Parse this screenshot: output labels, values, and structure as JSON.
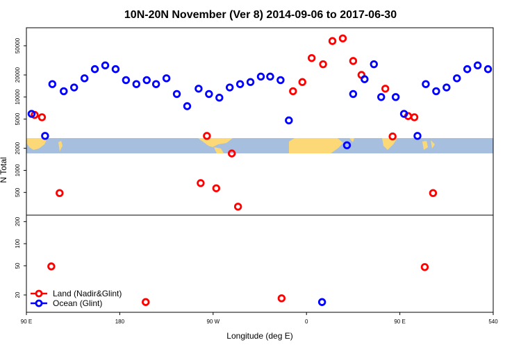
{
  "chart_data": {
    "type": "scatter",
    "title": "10N-20N November (Ver 8)   2014-09-06 to 2017-06-30",
    "x_label": "Longitude (deg E)",
    "y_label": "N Total",
    "log_y": true,
    "legend_position": "bottom-left",
    "xlim": [
      90,
      540
    ],
    "xticks": [
      {
        "value": 90,
        "label": "90 E"
      },
      180,
      {
        "value": 270,
        "label": "90 W"
      },
      {
        "value": 360,
        "label": "0"
      },
      {
        "value": 450,
        "label": "90 E"
      },
      540
    ],
    "ylim": [
      11.6,
      88000
    ],
    "yticks": [
      20,
      50,
      100,
      200,
      500,
      1000,
      2000,
      5000,
      10000,
      20000,
      50000
    ],
    "series": [
      {
        "name": "Land (Nadir&Glint)",
        "color": "#ff0000",
        "x": [
          98,
          105,
          122,
          114,
          205,
          258,
          264,
          273,
          288,
          294,
          336,
          347,
          356,
          365,
          376,
          385,
          395,
          405,
          413,
          436,
          443,
          458,
          464,
          474,
          482
        ],
        "values": [
          5700,
          5300,
          490,
          49,
          16,
          670,
          2950,
          570,
          1700,
          320,
          18,
          12000,
          16000,
          34000,
          28000,
          58000,
          63000,
          31000,
          20000,
          13000,
          2900,
          5500,
          5300,
          48,
          490
        ]
      },
      {
        "name": "Ocean (Glint)",
        "color": "#0000ff",
        "x": [
          95,
          108,
          115,
          126,
          136,
          146,
          156,
          166,
          176,
          186,
          196,
          206,
          215,
          225,
          235,
          245,
          256,
          266,
          276,
          286,
          296,
          306,
          316,
          325,
          335,
          343,
          375,
          399,
          405,
          416,
          425,
          432,
          446,
          454,
          467,
          475,
          485,
          495,
          505,
          515,
          525,
          535
        ],
        "values": [
          5900,
          2950,
          15000,
          12000,
          13500,
          18000,
          24000,
          27000,
          24000,
          17000,
          15000,
          17000,
          15000,
          18000,
          11000,
          7500,
          13000,
          11000,
          9800,
          13500,
          15000,
          16000,
          19000,
          19000,
          17000,
          4800,
          16,
          2200,
          11000,
          17500,
          28000,
          10000,
          10000,
          5900,
          2950,
          15000,
          12000,
          13500,
          18000,
          24000,
          27000,
          24000
        ]
      }
    ]
  }
}
